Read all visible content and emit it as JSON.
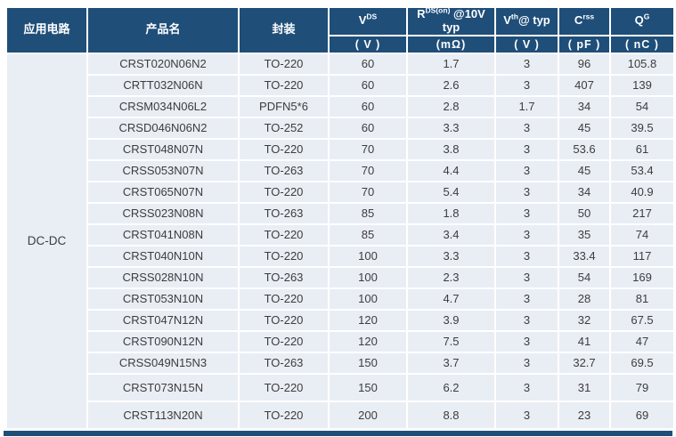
{
  "table": {
    "application_label": "DC-DC",
    "header": {
      "col_application": "应用电路",
      "col_product": "产品名",
      "col_package": "封装",
      "col_vds": {
        "pre": "V",
        "sup": "DS",
        "post": ""
      },
      "col_rds": {
        "pre": "R",
        "sup": "DS(on)",
        "post": " @10V typ"
      },
      "col_vth": {
        "pre": "V",
        "sup": "th",
        "post": "@ typ"
      },
      "col_crss": {
        "pre": "C",
        "sup": "rss",
        "post": ""
      },
      "col_qg": {
        "pre": "Q",
        "sup": "G",
        "post": ""
      },
      "units": {
        "vds": "( V )",
        "rds": "(mΩ)",
        "vth": "( V )",
        "crss": "( pF )",
        "qg": "( nC )"
      }
    },
    "rows": [
      {
        "product": "CRST020N06N2",
        "package": "TO-220",
        "vds": "60",
        "rds": "1.7",
        "vth": "3",
        "crss": "96",
        "qg": "105.8",
        "tall": false
      },
      {
        "product": "CRTT032N06N",
        "package": "TO-220",
        "vds": "60",
        "rds": "2.6",
        "vth": "3",
        "crss": "407",
        "qg": "139",
        "tall": false
      },
      {
        "product": "CRSM034N06L2",
        "package": "PDFN5*6",
        "vds": "60",
        "rds": "2.8",
        "vth": "1.7",
        "crss": "34",
        "qg": "54",
        "tall": false
      },
      {
        "product": "CRSD046N06N2",
        "package": "TO-252",
        "vds": "60",
        "rds": "3.3",
        "vth": "3",
        "crss": "45",
        "qg": "39.5",
        "tall": false
      },
      {
        "product": "CRST048N07N",
        "package": "TO-220",
        "vds": "70",
        "rds": "3.8",
        "vth": "3",
        "crss": "53.6",
        "qg": "61",
        "tall": false
      },
      {
        "product": "CRSS053N07N",
        "package": "TO-263",
        "vds": "70",
        "rds": "4.4",
        "vth": "3",
        "crss": "45",
        "qg": "53.4",
        "tall": false
      },
      {
        "product": "CRST065N07N",
        "package": "TO-220",
        "vds": "70",
        "rds": "5.4",
        "vth": "3",
        "crss": "34",
        "qg": "40.9",
        "tall": false
      },
      {
        "product": "CRSS023N08N",
        "package": "TO-263",
        "vds": "85",
        "rds": "1.8",
        "vth": "3",
        "crss": "50",
        "qg": "217",
        "tall": false
      },
      {
        "product": "CRST041N08N",
        "package": "TO-220",
        "vds": "85",
        "rds": "3.4",
        "vth": "3",
        "crss": "35",
        "qg": "74",
        "tall": false
      },
      {
        "product": "CRST040N10N",
        "package": "TO-220",
        "vds": "100",
        "rds": "3.3",
        "vth": "3",
        "crss": "33.4",
        "qg": "117",
        "tall": false
      },
      {
        "product": "CRSS028N10N",
        "package": "TO-263",
        "vds": "100",
        "rds": "2.3",
        "vth": "3",
        "crss": "54",
        "qg": "169",
        "tall": false
      },
      {
        "product": "CRST053N10N",
        "package": "TO-220",
        "vds": "100",
        "rds": "4.7",
        "vth": "3",
        "crss": "28",
        "qg": "81",
        "tall": false
      },
      {
        "product": "CRST047N12N",
        "package": "TO-220",
        "vds": "120",
        "rds": "3.9",
        "vth": "3",
        "crss": "32",
        "qg": "67.5",
        "tall": false
      },
      {
        "product": "CRST090N12N",
        "package": "TO-220",
        "vds": "120",
        "rds": "7.5",
        "vth": "3",
        "crss": "41",
        "qg": "47",
        "tall": false
      },
      {
        "product": "CRSS049N15N3",
        "package": "TO-263",
        "vds": "150",
        "rds": "3.7",
        "vth": "3",
        "crss": "32.7",
        "qg": "69.5",
        "tall": false
      },
      {
        "product": "CRST073N15N",
        "package": "TO-220",
        "vds": "150",
        "rds": "6.2",
        "vth": "3",
        "crss": "31",
        "qg": "79",
        "tall": true
      },
      {
        "product": "CRST113N20N",
        "package": "TO-220",
        "vds": "200",
        "rds": "8.8",
        "vth": "3",
        "crss": "23",
        "qg": "69",
        "tall": true
      }
    ]
  },
  "colors": {
    "header_bg": "#1f4e79",
    "row_bg": "#e9edf4",
    "cell_text": "#3d3d3d",
    "separator": "#ffffff"
  }
}
